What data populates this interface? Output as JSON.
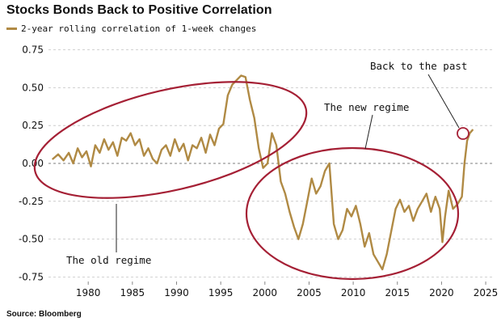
{
  "chart_data": {
    "type": "line",
    "title": "Stocks Bonds Back to Positive Correlation",
    "xlabel": "",
    "ylabel": "",
    "xlim": [
      1975.5,
      2026
    ],
    "ylim": [
      -0.78,
      0.78
    ],
    "xticks": [
      1980,
      1985,
      1990,
      1995,
      2000,
      2005,
      2010,
      2015,
      2020,
      2025
    ],
    "yticks": [
      0.75,
      0.5,
      0.25,
      0.0,
      -0.25,
      -0.5,
      -0.75
    ],
    "ytick_labels": [
      "0.75",
      "0.50",
      "0.25",
      "0.00",
      "-0.25",
      "-0.50",
      "-0.75"
    ],
    "grid": "horizontal dashed",
    "zero_line": true,
    "legend_position": "top-left",
    "series": [
      {
        "name": "2-year rolling correlation of 1-week changes",
        "color": "#b08a44",
        "x": [
          1976.0,
          1976.6,
          1977.2,
          1977.8,
          1978.3,
          1978.8,
          1979.3,
          1979.8,
          1980.3,
          1980.8,
          1981.3,
          1981.8,
          1982.3,
          1982.8,
          1983.3,
          1983.8,
          1984.3,
          1984.8,
          1985.3,
          1985.8,
          1986.3,
          1986.8,
          1987.3,
          1987.8,
          1988.3,
          1988.8,
          1989.3,
          1989.8,
          1990.3,
          1990.8,
          1991.3,
          1991.8,
          1992.3,
          1992.8,
          1993.3,
          1993.8,
          1994.3,
          1994.8,
          1995.3,
          1995.8,
          1996.3,
          1996.8,
          1997.3,
          1997.8,
          1998.3,
          1998.8,
          1999.3,
          1999.8,
          2000.3,
          2000.8,
          2001.3,
          2001.8,
          2002.3,
          2002.8,
          2003.3,
          2003.8,
          2004.3,
          2004.8,
          2005.3,
          2005.8,
          2006.3,
          2006.8,
          2007.3,
          2007.8,
          2008.3,
          2008.8,
          2009.3,
          2009.8,
          2010.3,
          2010.8,
          2011.3,
          2011.8,
          2012.3,
          2012.8,
          2013.3,
          2013.8,
          2014.3,
          2014.8,
          2015.3,
          2015.8,
          2016.3,
          2016.8,
          2017.3,
          2017.8,
          2018.3,
          2018.8,
          2019.3,
          2019.8,
          2020.1,
          2020.4,
          2020.8,
          2021.3,
          2021.8,
          2022.3,
          2022.6,
          2022.9,
          2023.2,
          2023.5
        ],
        "values": [
          0.03,
          0.06,
          0.02,
          0.07,
          0.0,
          0.1,
          0.04,
          0.08,
          -0.02,
          0.12,
          0.07,
          0.16,
          0.09,
          0.14,
          0.05,
          0.17,
          0.15,
          0.2,
          0.12,
          0.16,
          0.05,
          0.1,
          0.03,
          0.0,
          0.09,
          0.12,
          0.05,
          0.16,
          0.08,
          0.13,
          0.02,
          0.12,
          0.1,
          0.17,
          0.07,
          0.19,
          0.12,
          0.23,
          0.26,
          0.45,
          0.52,
          0.55,
          0.58,
          0.57,
          0.42,
          0.3,
          0.1,
          -0.03,
          0.0,
          0.2,
          0.12,
          -0.12,
          -0.2,
          -0.32,
          -0.42,
          -0.5,
          -0.4,
          -0.25,
          -0.1,
          -0.2,
          -0.15,
          -0.05,
          0.0,
          -0.4,
          -0.5,
          -0.44,
          -0.3,
          -0.35,
          -0.28,
          -0.4,
          -0.55,
          -0.46,
          -0.6,
          -0.65,
          -0.7,
          -0.6,
          -0.45,
          -0.3,
          -0.24,
          -0.32,
          -0.28,
          -0.38,
          -0.3,
          -0.25,
          -0.2,
          -0.32,
          -0.22,
          -0.3,
          -0.52,
          -0.35,
          -0.18,
          -0.3,
          -0.27,
          -0.22,
          0.0,
          0.15,
          0.2,
          0.22
        ]
      }
    ],
    "annotations": [
      {
        "text": "The old regime"
      },
      {
        "text": "The new regime"
      },
      {
        "text": "Back to the past"
      }
    ],
    "source": "Source: Bloomberg"
  },
  "colors": {
    "line": "#b08a44",
    "ellipse": "#a52035",
    "grid": "#c4c4c4",
    "zero_line": "#999999"
  }
}
